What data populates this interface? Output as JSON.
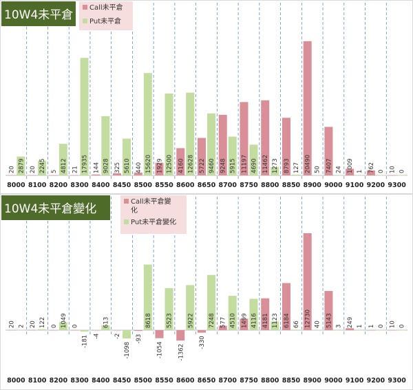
{
  "chart_data": [
    {
      "type": "bar",
      "title": "10W4未平倉",
      "categories": [
        "8000",
        "8100",
        "8200",
        "8300",
        "8400",
        "8450",
        "8500",
        "8550",
        "8600",
        "8650",
        "8700",
        "8750",
        "8800",
        "8850",
        "8900",
        "9000",
        "9100",
        "9200",
        "9300"
      ],
      "series": [
        {
          "name": "Call未平倉",
          "color": "#d98f97",
          "values": [
            20,
            20,
            5,
            21,
            144,
            325,
            440,
            1929,
            4160,
            5722,
            9248,
            11197,
            11462,
            8793,
            20490,
            7407,
            1009,
            762,
            10
          ]
        },
        {
          "name": "Put未平倉",
          "color": "#c3dca0",
          "values": [
            2879,
            2245,
            4812,
            17935,
            9028,
            5610,
            15620,
            12500,
            12628,
            9460,
            5915,
            4690,
            1273,
            127,
            50,
            24,
            1,
            0,
            0
          ]
        }
      ],
      "ylim": [
        0,
        21000
      ],
      "grid": false,
      "legend": "top-left"
    },
    {
      "type": "bar",
      "title": "10W4未平倉變化",
      "categories": [
        "8000",
        "8100",
        "8200",
        "8300",
        "8400",
        "8450",
        "8500",
        "8550",
        "8600",
        "8650",
        "8700",
        "8750",
        "8800",
        "8850",
        "8900",
        "9000",
        "9100",
        "9200",
        "9300"
      ],
      "series": [
        {
          "name": "Call未平倉變化",
          "color": "#d98f97",
          "values": [
            20,
            20,
            0,
            0,
            -4,
            -2,
            -93,
            -1054,
            -1362,
            -330,
            577,
            1499,
            4181,
            6184,
            12730,
            5143,
            249,
            1,
            10
          ]
        },
        {
          "name": "Put未平倉變化",
          "color": "#c3dca0",
          "values": [
            2,
            122,
            1049,
            -181,
            613,
            -1098,
            8618,
            5523,
            5922,
            7248,
            4510,
            4116,
            1123,
            66,
            40,
            3,
            1,
            0,
            0
          ]
        }
      ],
      "ylim": [
        -2000,
        14000
      ],
      "grid": false,
      "legend": "top-left"
    }
  ]
}
